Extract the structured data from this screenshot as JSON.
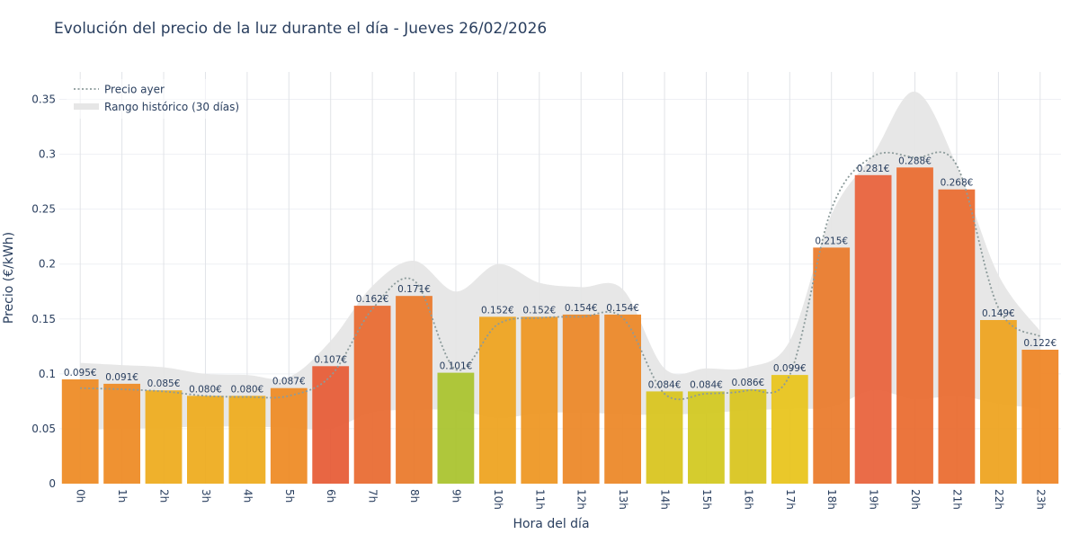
{
  "chart_data": {
    "type": "bar",
    "title": "Evolución del precio de la luz durante el día - Jueves 26/02/2026",
    "xlabel": "Hora del día",
    "ylabel": "Precio (€/kWh)",
    "ylim": [
      0,
      0.375
    ],
    "yticks": [
      0,
      0.05,
      0.1,
      0.15,
      0.2,
      0.25,
      0.3,
      0.35
    ],
    "ytick_labels": [
      "0",
      "0.05",
      "0.1",
      "0.15",
      "0.2",
      "0.25",
      "0.3",
      "0.35"
    ],
    "grid": true,
    "legend_position": "top-left",
    "categories": [
      "0h",
      "1h",
      "2h",
      "3h",
      "4h",
      "5h",
      "6h",
      "7h",
      "8h",
      "9h",
      "10h",
      "11h",
      "12h",
      "13h",
      "14h",
      "15h",
      "16h",
      "17h",
      "18h",
      "19h",
      "20h",
      "21h",
      "22h",
      "23h"
    ],
    "series": [
      {
        "kind": "bar",
        "values": [
          0.095,
          0.091,
          0.085,
          0.08,
          0.08,
          0.087,
          0.107,
          0.162,
          0.171,
          0.101,
          0.152,
          0.152,
          0.154,
          0.154,
          0.084,
          0.084,
          0.086,
          0.099,
          0.215,
          0.281,
          0.288,
          0.268,
          0.149,
          0.122
        ],
        "labels": [
          "0.095€",
          "0.091€",
          "0.085€",
          "0.080€",
          "0.080€",
          "0.087€",
          "0.107€",
          "0.162€",
          "0.171€",
          "0.101€",
          "0.152€",
          "0.152€",
          "0.154€",
          "0.154€",
          "0.084€",
          "0.084€",
          "0.086€",
          "0.099€",
          "0.215€",
          "0.281€",
          "0.288€",
          "0.268€",
          "0.149€",
          "0.122€"
        ],
        "colors": [
          "#ee8a22",
          "#ee8a22",
          "#eeab1c",
          "#eeab1c",
          "#eeab1c",
          "#ee8a22",
          "#e65a35",
          "#e8692f",
          "#ea782a",
          "#a9c32c",
          "#eea21d",
          "#ee9620",
          "#ec8726",
          "#ec8726",
          "#d8c41c",
          "#d2c81e",
          "#d8c41c",
          "#e8c41a",
          "#ea7a2a",
          "#e8613a",
          "#ea6a2e",
          "#ea6a2e",
          "#eea21d",
          "#ef8424"
        ]
      },
      {
        "name": "Precio ayer",
        "kind": "line",
        "color": "#8c9b9b",
        "values": [
          0.087,
          0.086,
          0.084,
          0.08,
          0.079,
          0.08,
          0.098,
          0.159,
          0.185,
          0.104,
          0.145,
          0.151,
          0.152,
          0.151,
          0.082,
          0.082,
          0.085,
          0.099,
          0.25,
          0.298,
          0.297,
          0.29,
          0.16,
          0.134
        ]
      },
      {
        "name": "Rango histórico (30 días)",
        "kind": "band",
        "color": "#e6e6e6",
        "min": [
          0.049,
          0.05,
          0.051,
          0.052,
          0.052,
          0.051,
          0.05,
          0.065,
          0.067,
          0.067,
          0.06,
          0.064,
          0.065,
          0.063,
          0.063,
          0.064,
          0.067,
          0.068,
          0.07,
          0.085,
          0.077,
          0.08,
          0.073,
          0.068
        ],
        "max": [
          0.11,
          0.108,
          0.106,
          0.1,
          0.099,
          0.097,
          0.13,
          0.18,
          0.203,
          0.175,
          0.2,
          0.183,
          0.179,
          0.177,
          0.105,
          0.105,
          0.106,
          0.13,
          0.245,
          0.3,
          0.357,
          0.29,
          0.19,
          0.139
        ]
      }
    ]
  }
}
